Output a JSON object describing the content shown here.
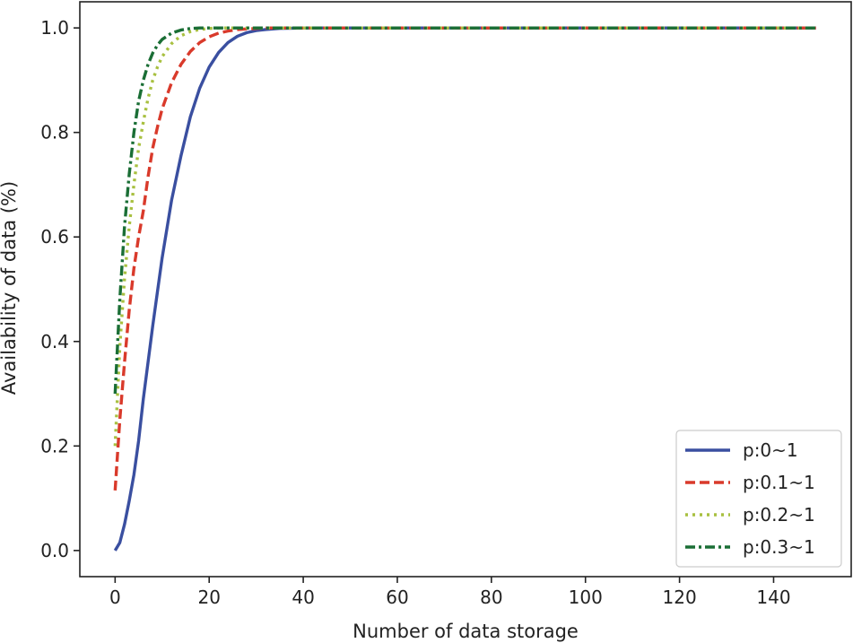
{
  "chart_data": {
    "type": "line",
    "title": "",
    "xlabel": "Number of data storage",
    "ylabel": "Availability of data (%)",
    "xlim": [
      -7.5,
      156.5
    ],
    "ylim": [
      -0.05,
      1.05
    ],
    "xticks": [
      0,
      20,
      40,
      60,
      80,
      100,
      120,
      140
    ],
    "xtick_labels": [
      "0",
      "20",
      "40",
      "60",
      "80",
      "100",
      "120",
      "140"
    ],
    "yticks": [
      0.0,
      0.2,
      0.4,
      0.6,
      0.8,
      1.0
    ],
    "ytick_labels": [
      "0.0",
      "0.2",
      "0.4",
      "0.6",
      "0.8",
      "1.0"
    ],
    "grid": false,
    "legend_position": "lower-right",
    "x": [
      0,
      1,
      2,
      3,
      4,
      5,
      6,
      7,
      8,
      9,
      10,
      12,
      14,
      16,
      18,
      20,
      22,
      24,
      26,
      28,
      30,
      32,
      35,
      38,
      40,
      45,
      50,
      60,
      80,
      100,
      120,
      149
    ],
    "series": [
      {
        "name": "p:0~1",
        "color": "#3a4fa0",
        "dash": "solid",
        "values": [
          0.0,
          0.015,
          0.05,
          0.095,
          0.145,
          0.21,
          0.29,
          0.36,
          0.43,
          0.495,
          0.56,
          0.67,
          0.755,
          0.83,
          0.885,
          0.925,
          0.953,
          0.972,
          0.984,
          0.991,
          0.995,
          0.997,
          0.999,
          0.9995,
          1.0,
          1.0,
          1.0,
          1.0,
          1.0,
          1.0,
          1.0,
          1.0
        ]
      },
      {
        "name": "p:0.1~1",
        "color": "#d93a2b",
        "dash": "dashed",
        "values": [
          0.115,
          0.25,
          0.36,
          0.46,
          0.54,
          0.6,
          0.65,
          0.715,
          0.77,
          0.81,
          0.845,
          0.895,
          0.93,
          0.955,
          0.972,
          0.983,
          0.99,
          0.994,
          0.997,
          0.998,
          0.999,
          1.0,
          1.0,
          1.0,
          1.0,
          1.0,
          1.0,
          1.0,
          1.0,
          1.0,
          1.0,
          1.0
        ]
      },
      {
        "name": "p:0.2~1",
        "color": "#a8c040",
        "dash": "dotted",
        "values": [
          0.2,
          0.39,
          0.52,
          0.62,
          0.7,
          0.77,
          0.82,
          0.865,
          0.9,
          0.925,
          0.945,
          0.97,
          0.985,
          0.993,
          0.997,
          0.999,
          1.0,
          1.0,
          1.0,
          1.0,
          1.0,
          1.0,
          1.0,
          1.0,
          1.0,
          1.0,
          1.0,
          1.0,
          1.0,
          1.0,
          1.0,
          1.0
        ]
      },
      {
        "name": "p:0.3~1",
        "color": "#1a6e35",
        "dash": "dashdot",
        "values": [
          0.3,
          0.48,
          0.62,
          0.72,
          0.8,
          0.86,
          0.9,
          0.93,
          0.952,
          0.967,
          0.978,
          0.99,
          0.996,
          0.999,
          1.0,
          1.0,
          1.0,
          1.0,
          1.0,
          1.0,
          1.0,
          1.0,
          1.0,
          1.0,
          1.0,
          1.0,
          1.0,
          1.0,
          1.0,
          1.0,
          1.0,
          1.0
        ]
      }
    ]
  }
}
